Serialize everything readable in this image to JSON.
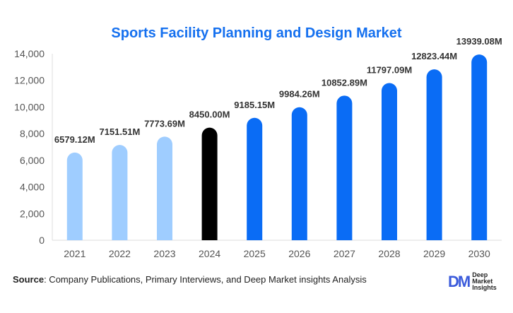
{
  "chart_data": {
    "type": "bar",
    "title": "Sports Facility Planning and Design Market",
    "categories": [
      "2021",
      "2022",
      "2023",
      "2024",
      "2025",
      "2026",
      "2027",
      "2028",
      "2029",
      "2030"
    ],
    "values": [
      6579.12,
      7151.51,
      7773.69,
      8450.0,
      9185.15,
      9984.26,
      10852.89,
      11797.09,
      12823.44,
      13939.08
    ],
    "data_labels": [
      "6579.12M",
      "7151.51M",
      "7773.69M",
      "8450.00M",
      "9185.15M",
      "9984.26M",
      "10852.89M",
      "11797.09M",
      "12823.44M",
      "13939.08M"
    ],
    "yticks": [
      "0",
      "2,000",
      "4,000",
      "6,000",
      "8,000",
      "10,000",
      "12,000",
      "14,000"
    ],
    "ylim": [
      0,
      14000
    ],
    "colors": {
      "historical": "#9fcdff",
      "base_year": "#000000",
      "forecast": "#0a6cf5"
    },
    "grid": false
  },
  "source": {
    "label": "Source",
    "text": ": Company Publications, Primary Interviews, and Deep Market insights Analysis"
  },
  "logo": {
    "mark": "DM",
    "lines": [
      "Deep",
      "Market",
      "Insights"
    ]
  }
}
